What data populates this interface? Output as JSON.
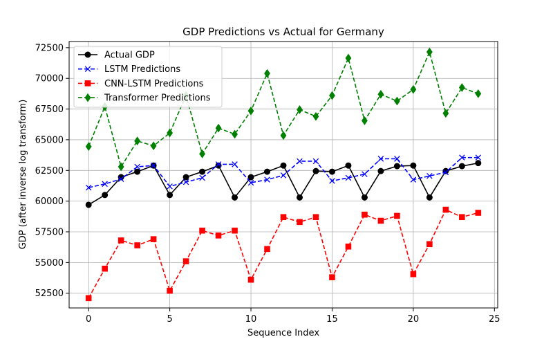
{
  "chart_data": {
    "type": "line",
    "title": "GDP Predictions vs Actual for Germany",
    "xlabel": "Sequence Index",
    "ylabel": "GDP (after inverse log transform)",
    "xlim": [
      -1.2,
      25.2
    ],
    "ylim": [
      51300,
      73000
    ],
    "x_ticks": [
      0,
      5,
      10,
      15,
      20,
      25
    ],
    "y_ticks": [
      52500,
      55000,
      57500,
      60000,
      62500,
      65000,
      67500,
      70000,
      72500
    ],
    "grid": true,
    "legend_position": "top-left",
    "x": [
      0,
      1,
      2,
      3,
      4,
      5,
      6,
      7,
      8,
      9,
      10,
      11,
      12,
      13,
      14,
      15,
      16,
      17,
      18,
      19,
      20,
      21,
      22,
      23,
      24
    ],
    "series": [
      {
        "name": "Actual GDP",
        "color": "#000000",
        "marker": "circle",
        "dashed": false,
        "values": [
          59700,
          60500,
          61950,
          62400,
          62900,
          60500,
          61950,
          62400,
          62900,
          60300,
          61950,
          62400,
          62900,
          60300,
          62450,
          62400,
          62900,
          60300,
          62450,
          62850,
          62900,
          60300,
          62450,
          62850,
          63100
        ]
      },
      {
        "name": "LSTM Predictions",
        "color": "#0000ff",
        "marker": "x",
        "dashed": true,
        "values": [
          61100,
          61400,
          61800,
          62800,
          62900,
          61200,
          61550,
          61900,
          63000,
          63000,
          61500,
          61750,
          62100,
          63250,
          63250,
          61650,
          61900,
          62200,
          63450,
          63450,
          61750,
          62050,
          62350,
          63550,
          63550
        ]
      },
      {
        "name": "CNN-LSTM Predictions",
        "color": "#ff0000",
        "marker": "square",
        "dashed": true,
        "values": [
          52100,
          54500,
          56800,
          56400,
          56900,
          52700,
          55100,
          57600,
          57200,
          57600,
          53600,
          56100,
          58700,
          58300,
          58700,
          53800,
          56300,
          58900,
          58400,
          58800,
          54050,
          56500,
          59300,
          58700,
          59050
        ]
      },
      {
        "name": "Transformer Predictions",
        "color": "#008000",
        "marker": "diamond",
        "dashed": true,
        "values": [
          64450,
          67700,
          62800,
          64900,
          64500,
          65550,
          68600,
          63850,
          65950,
          65450,
          67350,
          70400,
          65350,
          67450,
          66900,
          68600,
          71650,
          66550,
          68700,
          68150,
          69100,
          72150,
          67150,
          69250,
          68750
        ]
      }
    ]
  }
}
